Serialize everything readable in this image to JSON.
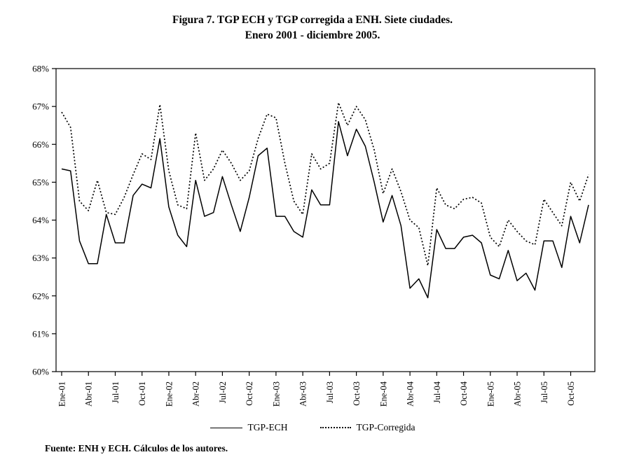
{
  "title": {
    "line1": "Figura 7. TGP ECH y TGP corregida a ENH. Siete ciudades.",
    "line2": "Enero 2001 - diciembre 2005."
  },
  "source_note": "Fuente: ENH y ECH. Cálculos de los autores.",
  "legend": {
    "items": [
      {
        "label": "TGP-ECH",
        "style": "solid"
      },
      {
        "label": "TGP-Corregida",
        "style": "dotted"
      }
    ]
  },
  "colors": {
    "line": "#000000",
    "text": "#000000",
    "background": "#ffffff"
  },
  "chart_data": {
    "type": "line",
    "title": "Figura 7. TGP ECH y TGP corregida a ENH. Siete ciudades. Enero 2001 - diciembre 2005.",
    "xlabel": "",
    "ylabel": "",
    "ylim": [
      60,
      68
    ],
    "grid": false,
    "legend_position": "bottom",
    "y_tick_labels": [
      "68%",
      "67%",
      "66%",
      "65%",
      "64%",
      "63%",
      "62%",
      "61%",
      "60%"
    ],
    "x_tick_labels": [
      "Ene-01",
      "Abr-01",
      "Jul-01",
      "Oct-01",
      "Ene-02",
      "Abr-02",
      "Jul-02",
      "Oct-02",
      "Ene-03",
      "Abr-03",
      "Jul-03",
      "Oct-03",
      "Ene-04",
      "Abr-04",
      "Jul-04",
      "Oct-04",
      "Ene-05",
      "Abr-05",
      "Jul-05",
      "Oct-05"
    ],
    "x_tick_every": 3,
    "n_points": 60,
    "x_range_note": "monthly, Ene-01 to Dic-05",
    "series": [
      {
        "name": "TGP-ECH",
        "style": "solid",
        "values": [
          65.35,
          65.3,
          63.45,
          62.85,
          62.85,
          64.15,
          63.4,
          63.4,
          64.65,
          64.95,
          64.85,
          66.15,
          64.35,
          63.6,
          63.3,
          65.05,
          64.1,
          64.2,
          65.15,
          64.4,
          63.7,
          64.6,
          65.7,
          65.9,
          64.1,
          64.1,
          63.7,
          63.55,
          64.8,
          64.4,
          64.4,
          66.6,
          65.7,
          66.4,
          65.95,
          65.0,
          63.95,
          64.65,
          63.85,
          62.2,
          62.45,
          61.95,
          63.75,
          63.25,
          63.25,
          63.55,
          63.6,
          63.4,
          62.55,
          62.45,
          63.2,
          62.4,
          62.6,
          62.15,
          63.45,
          63.45,
          62.75,
          64.1,
          63.4,
          64.4
        ]
      },
      {
        "name": "TGP-Corregida",
        "style": "dotted",
        "values": [
          66.85,
          66.45,
          64.5,
          64.25,
          65.05,
          64.2,
          64.15,
          64.6,
          65.2,
          65.75,
          65.6,
          67.05,
          65.3,
          64.4,
          64.3,
          66.3,
          65.05,
          65.35,
          65.85,
          65.5,
          65.05,
          65.3,
          66.15,
          66.8,
          66.7,
          65.5,
          64.5,
          64.15,
          65.75,
          65.35,
          65.5,
          67.1,
          66.5,
          67.0,
          66.65,
          65.85,
          64.7,
          65.35,
          64.75,
          64.0,
          63.8,
          62.8,
          64.85,
          64.4,
          64.3,
          64.55,
          64.6,
          64.45,
          63.55,
          63.3,
          64.0,
          63.7,
          63.45,
          63.35,
          64.55,
          64.2,
          63.85,
          65.0,
          64.5,
          65.2
        ]
      }
    ]
  }
}
